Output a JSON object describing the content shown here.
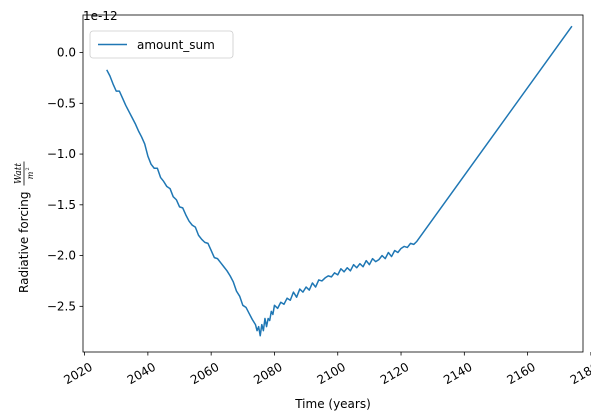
{
  "chart_data": {
    "type": "line",
    "xlabel": "Time (years)",
    "ylabel": "Radiative forcing",
    "ylabel_unit_numerator": "Watt",
    "ylabel_unit_denominator": "m",
    "ylabel_unit_exponent": "2",
    "offset_label": "1e-12",
    "xlim": [
      2019.5,
      2177.5
    ],
    "ylim": [
      -2.95,
      0.37
    ],
    "xticks": [
      2020,
      2040,
      2060,
      2080,
      2100,
      2120,
      2140,
      2160,
      2180
    ],
    "xtick_labels": [
      "2020",
      "2040",
      "2060",
      "2080",
      "2100",
      "2120",
      "2140",
      "2160",
      "2180"
    ],
    "yticks": [
      0.0,
      -0.5,
      -1.0,
      -1.5,
      -2.0,
      -2.5
    ],
    "ytick_labels": [
      "0.0",
      "−0.5",
      "−1.0",
      "−1.5",
      "−2.0",
      "−2.5"
    ],
    "legend_position": "top-left",
    "series": [
      {
        "name": "amount_sum",
        "color": "#1f77b4",
        "x": [
          2027.0,
          2028.0,
          2029.0,
          2030.0,
          2031.0,
          2032.0,
          2033.0,
          2034.0,
          2035.0,
          2036.0,
          2037.0,
          2038.0,
          2039.0,
          2040.0,
          2041.0,
          2042.0,
          2043.0,
          2044.0,
          2045.0,
          2046.0,
          2047.0,
          2048.0,
          2049.0,
          2050.0,
          2051.0,
          2052.0,
          2053.0,
          2054.0,
          2055.0,
          2056.0,
          2057.0,
          2058.0,
          2059.0,
          2060.0,
          2061.0,
          2062.0,
          2063.0,
          2064.0,
          2065.0,
          2066.0,
          2067.0,
          2068.0,
          2069.0,
          2070.0,
          2071.0,
          2072.0,
          2073.0,
          2074.0,
          2074.5,
          2075.0,
          2075.5,
          2076.0,
          2076.5,
          2077.0,
          2077.5,
          2078.0,
          2078.5,
          2079.0,
          2079.5,
          2080.0,
          2081.0,
          2082.0,
          2083.0,
          2084.0,
          2085.0,
          2086.0,
          2087.0,
          2088.0,
          2089.0,
          2090.0,
          2091.0,
          2092.0,
          2093.0,
          2094.0,
          2095.0,
          2096.0,
          2097.0,
          2098.0,
          2099.0,
          2100.0,
          2101.0,
          2102.0,
          2103.0,
          2104.0,
          2105.0,
          2106.0,
          2107.0,
          2108.0,
          2109.0,
          2110.0,
          2111.0,
          2112.0,
          2113.0,
          2114.0,
          2115.0,
          2116.0,
          2117.0,
          2118.0,
          2119.0,
          2120.0,
          2121.0,
          2122.0,
          2123.0,
          2124.0,
          2125.0,
          2174.0
        ],
        "y": [
          -0.17,
          -0.23,
          -0.31,
          -0.38,
          -0.38,
          -0.45,
          -0.52,
          -0.58,
          -0.64,
          -0.7,
          -0.77,
          -0.83,
          -0.9,
          -1.02,
          -1.1,
          -1.14,
          -1.14,
          -1.23,
          -1.27,
          -1.32,
          -1.34,
          -1.42,
          -1.45,
          -1.52,
          -1.53,
          -1.6,
          -1.66,
          -1.7,
          -1.72,
          -1.8,
          -1.84,
          -1.87,
          -1.88,
          -1.95,
          -2.02,
          -2.03,
          -2.07,
          -2.11,
          -2.15,
          -2.2,
          -2.26,
          -2.35,
          -2.4,
          -2.49,
          -2.51,
          -2.57,
          -2.63,
          -2.68,
          -2.74,
          -2.7,
          -2.79,
          -2.68,
          -2.74,
          -2.62,
          -2.7,
          -2.62,
          -2.64,
          -2.55,
          -2.58,
          -2.49,
          -2.52,
          -2.46,
          -2.48,
          -2.42,
          -2.44,
          -2.36,
          -2.41,
          -2.33,
          -2.36,
          -2.31,
          -2.34,
          -2.27,
          -2.31,
          -2.24,
          -2.25,
          -2.22,
          -2.2,
          -2.21,
          -2.17,
          -2.19,
          -2.13,
          -2.16,
          -2.12,
          -2.15,
          -2.09,
          -2.12,
          -2.08,
          -2.11,
          -2.05,
          -2.09,
          -2.03,
          -2.06,
          -2.04,
          -2.0,
          -2.03,
          -1.97,
          -2.01,
          -1.95,
          -1.97,
          -1.93,
          -1.91,
          -1.92,
          -1.88,
          -1.89,
          -1.86,
          0.26
        ]
      }
    ]
  }
}
